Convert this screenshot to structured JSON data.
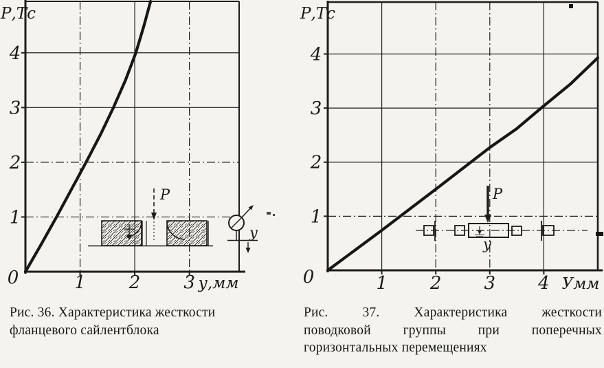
{
  "page": {
    "background": "#f4f3ef",
    "ink": "#1d1d1b"
  },
  "figures": [
    {
      "number": "Рис. 36.",
      "caption_lines": [
        "Рис. 36. Характеристика жесткости",
        "фланцевого сайлентблока"
      ],
      "inset": {
        "force_label": "Р",
        "displacement_label": "у"
      }
    },
    {
      "number": "Рис. 37.",
      "caption_lines": [
        "Рис. 37. Характеристика жесткости",
        "поводковой группы при поперечных",
        "горизонтальных перемещениях"
      ],
      "inset": {
        "force_label": "Р",
        "displacement_label": "у"
      }
    }
  ],
  "chart_data": [
    {
      "type": "line",
      "title": "Характеристика жесткости фланцевого сайлентблока",
      "xlabel": "у,мм",
      "ylabel": "Р,Тс",
      "origin_label": "0",
      "x_ticks": [
        0,
        1,
        2,
        3
      ],
      "y_ticks": [
        0,
        1,
        2,
        3,
        4
      ],
      "xlim": [
        0,
        3.91
      ],
      "ylim": [
        0,
        4.94
      ],
      "grid": true,
      "legend": false,
      "points": [
        [
          0,
          0
        ],
        [
          0.3,
          0.52
        ],
        [
          0.57,
          1
        ],
        [
          0.85,
          1.52
        ],
        [
          1.11,
          2
        ],
        [
          1.38,
          2.52
        ],
        [
          1.61,
          3
        ],
        [
          1.83,
          3.5
        ],
        [
          2.02,
          4
        ],
        [
          2.17,
          4.5
        ],
        [
          2.29,
          4.94
        ]
      ]
    },
    {
      "type": "line",
      "title": "Характеристика жесткости поводковой группы при поперечных горизонтальных перемещениях",
      "xlabel": "Умм",
      "ylabel": "Р,Тс",
      "origin_label": "0",
      "x_ticks": [
        0,
        1,
        2,
        3,
        4
      ],
      "y_ticks": [
        0,
        1,
        2,
        3,
        4
      ],
      "xlim": [
        0,
        5.0
      ],
      "ylim": [
        0,
        4.96
      ],
      "grid": true,
      "legend": false,
      "points": [
        [
          0,
          0
        ],
        [
          0.5,
          0.37
        ],
        [
          1,
          0.74
        ],
        [
          1.5,
          1.12
        ],
        [
          2,
          1.5
        ],
        [
          2.65,
          2
        ],
        [
          3,
          2.27
        ],
        [
          3.5,
          2.62
        ],
        [
          3.95,
          3
        ],
        [
          4.5,
          3.45
        ],
        [
          5.0,
          3.93
        ]
      ]
    }
  ]
}
